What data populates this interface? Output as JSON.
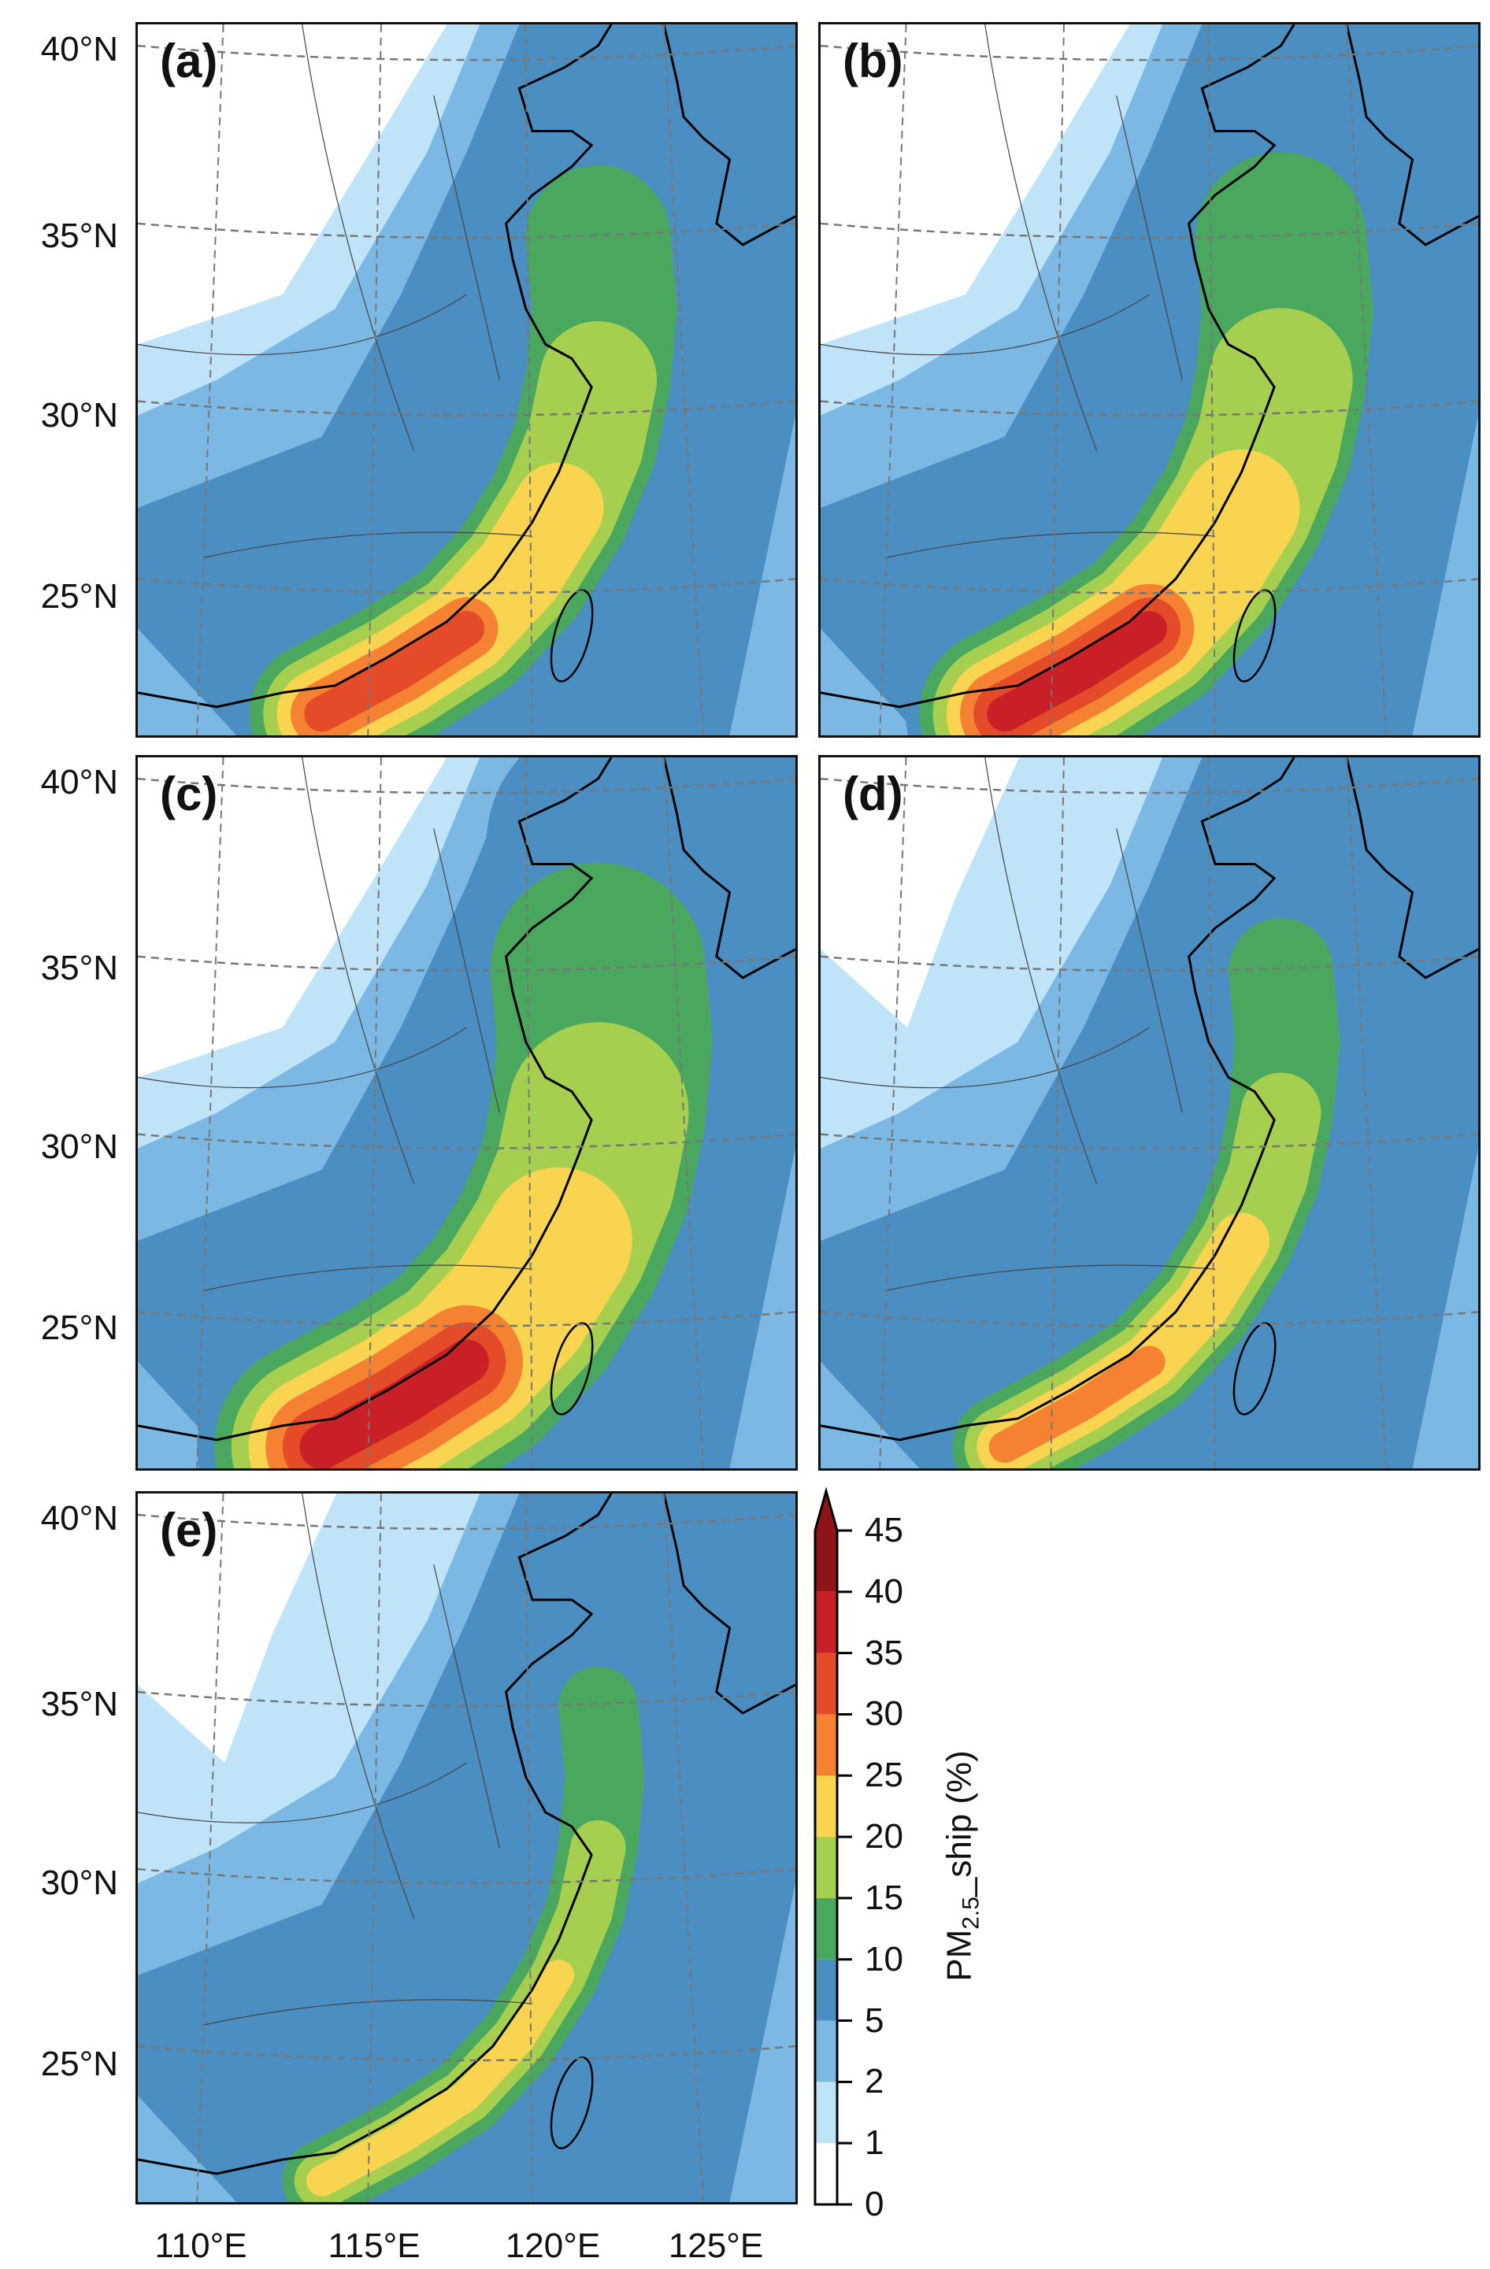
{
  "panels": [
    {
      "label": "(a)",
      "peak_level": 5,
      "extent": 1.0
    },
    {
      "label": "(b)",
      "peak_level": 6,
      "extent": 1.15
    },
    {
      "label": "(c)",
      "peak_level": 6,
      "extent": 1.45
    },
    {
      "label": "(d)",
      "peak_level": 4,
      "extent": 0.75
    },
    {
      "label": "(e)",
      "peak_level": 3,
      "extent": 0.6
    }
  ],
  "lat_labels": [
    "40°N",
    "35°N",
    "30°N",
    "25°N"
  ],
  "lon_labels": [
    "110°E",
    "115°E",
    "120°E",
    "125°E"
  ],
  "colorbar": {
    "title_main": "PM",
    "title_sub": "2.5",
    "title_rest": "_ship (%)",
    "ticks": [
      "0",
      "1",
      "2",
      "5",
      "10",
      "15",
      "20",
      "25",
      "30",
      "35",
      "40",
      "45"
    ],
    "colors": [
      "#ffffff",
      "#c0e4f7",
      "#7cb8e4",
      "#4b8ec2",
      "#49a85d",
      "#a6cf50",
      "#f8d451",
      "#f58233",
      "#e44b28",
      "#c91f26",
      "#8f1418"
    ],
    "extend": "max"
  }
}
